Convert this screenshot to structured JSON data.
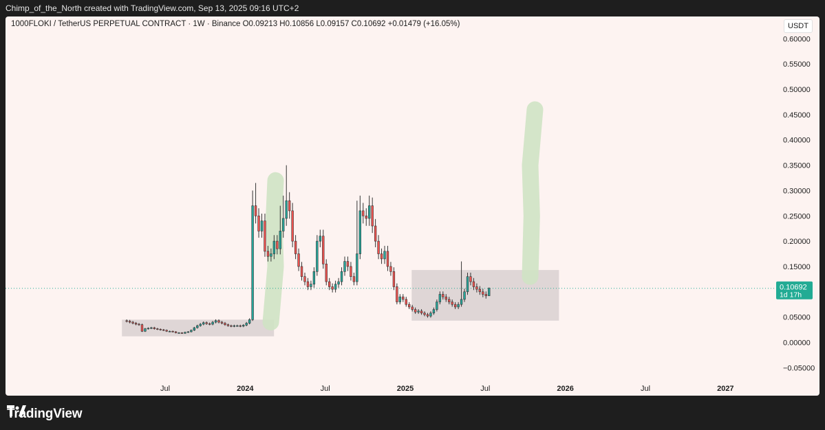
{
  "header": {
    "attribution": "Chimp_of_the_North created with TradingView.com, Sep 13, 2025 09:16 UTC+2"
  },
  "legend": {
    "text": "1000FLOKI / TetherUS PERPETUAL CONTRACT · 1W · Binance  O0.09213  H0.10856  L0.09157  C0.10692  +0.01479 (+16.05%)"
  },
  "price_axis": {
    "currency": "USDT",
    "last_price_label": "0.10692",
    "countdown_label": "1d 17h"
  },
  "footer": {
    "brand": "TradingView"
  },
  "colors": {
    "up": "#26a69a",
    "down": "#ef5350",
    "box_fill": "#d9d0d1",
    "arrow_highlight": "#cfe3c4",
    "last_price": "#22ab94",
    "background": "#fdf3f1"
  },
  "chart_data": {
    "type": "candlestick",
    "symbol": "1000FLOKI / TetherUS PERPETUAL CONTRACT",
    "interval": "1W",
    "exchange": "Binance",
    "ohlc_last": {
      "open": 0.09213,
      "high": 0.10856,
      "low": 0.09157,
      "close": 0.10692,
      "change": 0.01479,
      "change_pct": 16.05
    },
    "y_ticks": [
      "0.60000",
      "0.55000",
      "0.50000",
      "0.45000",
      "0.40000",
      "0.35000",
      "0.30000",
      "0.25000",
      "0.20000",
      "0.15000",
      "0.10000",
      "0.05000",
      "0.00000",
      "−0.05000"
    ],
    "y_range": [
      -0.055,
      0.61
    ],
    "x_ticks": [
      {
        "label": "Jul",
        "t": 2023.5,
        "bold": false
      },
      {
        "label": "2024",
        "t": 2024.0,
        "bold": true
      },
      {
        "label": "Jul",
        "t": 2024.5,
        "bold": false
      },
      {
        "label": "2025",
        "t": 2025.0,
        "bold": true
      },
      {
        "label": "Jul",
        "t": 2025.5,
        "bold": false
      },
      {
        "label": "2026",
        "t": 2026.0,
        "bold": true
      },
      {
        "label": "Jul",
        "t": 2026.5,
        "bold": false
      },
      {
        "label": "2027",
        "t": 2027.0,
        "bold": true
      }
    ],
    "candles_start": 2023.26,
    "candle_step_years": 0.01918,
    "closes": [
      0.042,
      0.04,
      0.038,
      0.036,
      0.035,
      0.022,
      0.027,
      0.028,
      0.029,
      0.027,
      0.026,
      0.025,
      0.024,
      0.022,
      0.022,
      0.021,
      0.019,
      0.019,
      0.018,
      0.02,
      0.021,
      0.024,
      0.029,
      0.033,
      0.036,
      0.039,
      0.037,
      0.036,
      0.04,
      0.043,
      0.04,
      0.038,
      0.035,
      0.033,
      0.032,
      0.033,
      0.033,
      0.032,
      0.034,
      0.038,
      0.045,
      0.27,
      0.25,
      0.22,
      0.24,
      0.18,
      0.17,
      0.175,
      0.2,
      0.185,
      0.22,
      0.245,
      0.28,
      0.26,
      0.2,
      0.175,
      0.15,
      0.13,
      0.12,
      0.11,
      0.115,
      0.14,
      0.2,
      0.21,
      0.155,
      0.12,
      0.11,
      0.105,
      0.115,
      0.12,
      0.14,
      0.16,
      0.15,
      0.13,
      0.12,
      0.175,
      0.26,
      0.25,
      0.245,
      0.27,
      0.23,
      0.2,
      0.175,
      0.165,
      0.18,
      0.15,
      0.14,
      0.11,
      0.08,
      0.09,
      0.085,
      0.075,
      0.07,
      0.065,
      0.06,
      0.062,
      0.058,
      0.055,
      0.052,
      0.058,
      0.065,
      0.08,
      0.095,
      0.09,
      0.085,
      0.08,
      0.075,
      0.07,
      0.075,
      0.085,
      0.1,
      0.13,
      0.12,
      0.11,
      0.105,
      0.1,
      0.095,
      0.092,
      0.10692
    ],
    "highs_extra": {
      "41": 0.3,
      "42": 0.315,
      "50": 0.27,
      "51": 0.29,
      "52": 0.35,
      "75": 0.28,
      "76": 0.29,
      "79": 0.29,
      "109": 0.16
    },
    "box_annotations": [
      {
        "t0": 2023.23,
        "t1": 2024.18,
        "y0": 0.012,
        "y1": 0.045
      },
      {
        "t0": 2025.04,
        "t1": 2025.96,
        "y0": 0.043,
        "y1": 0.143
      }
    ],
    "drawn_arrows": [
      {
        "points": [
          [
            2024.16,
            0.04
          ],
          [
            2024.19,
            0.15
          ],
          [
            2024.18,
            0.25
          ],
          [
            2024.19,
            0.32
          ]
        ]
      },
      {
        "points": [
          [
            2025.78,
            0.13
          ],
          [
            2025.79,
            0.25
          ],
          [
            2025.78,
            0.35
          ],
          [
            2025.81,
            0.46
          ]
        ]
      }
    ]
  }
}
